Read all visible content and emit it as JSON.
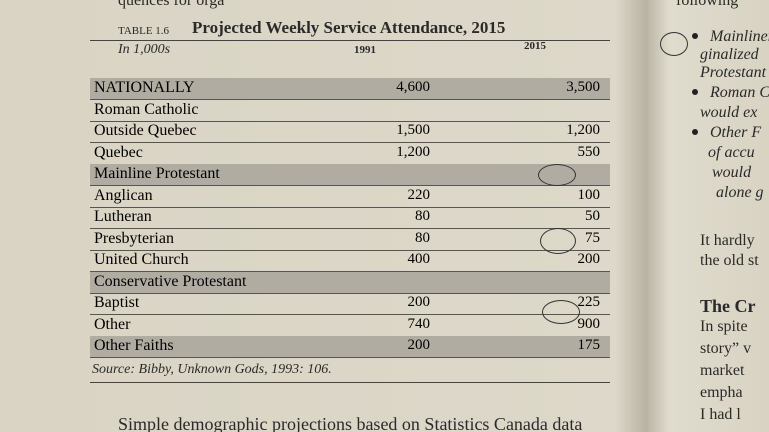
{
  "top_left": "quences for orga",
  "top_right": "following",
  "table": {
    "label": "TABLE 1.6",
    "title": "Projected Weekly Service Attendance, 2015",
    "unit": "In 1,000s",
    "columns": [
      "1991",
      "2015"
    ],
    "rows": [
      {
        "label": "NATIONALLY",
        "cells": [
          "4,600",
          "3,500"
        ]
      },
      {
        "label": "Roman Catholic"
      },
      {
        "label": "Outside Quebec",
        "cells": [
          "1,500",
          "1,200"
        ]
      },
      {
        "label": "Quebec",
        "cells": [
          "1,200",
          "550"
        ]
      },
      {
        "label": "Mainline Protestant"
      },
      {
        "label": "Anglican",
        "cells": [
          "220",
          "100"
        ]
      },
      {
        "label": "Lutheran",
        "cells": [
          "80",
          "50"
        ]
      },
      {
        "label": "Presbyterian",
        "cells": [
          "80",
          "75"
        ]
      },
      {
        "label": "United Church",
        "cells": [
          "400",
          "200"
        ]
      },
      {
        "label": "Conservative Protestant"
      },
      {
        "label": "Baptist",
        "cells": [
          "200",
          "225"
        ]
      },
      {
        "label": "Other",
        "cells": [
          "740",
          "900"
        ]
      },
      {
        "label": "Other Faiths",
        "cells": [
          "200",
          "175"
        ]
      }
    ],
    "source": "Source: Bibby, Unknown Gods, 1993: 106."
  },
  "bottom_text": "Simple demographic projections based on Statistics Canada data",
  "right_lines": [
    "Mainliners",
    "ginalized",
    "Protestant",
    "Roman C",
    "would ex",
    "Other F",
    "of accu",
    "would",
    "alone g",
    "It hardly",
    "the old st",
    "The Cr",
    "In spite",
    "story” v",
    "market",
    "empha",
    "I had l"
  ]
}
